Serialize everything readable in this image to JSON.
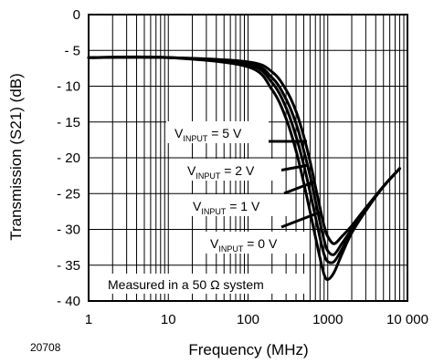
{
  "chart_data": {
    "type": "line",
    "title": "",
    "xlabel": "Frequency (MHz)",
    "ylabel": "Transmission (S21) (dB)",
    "xscale": "log",
    "xlim": [
      1,
      10000
    ],
    "ylim": [
      -40,
      0
    ],
    "x_tick_labels": [
      "1",
      "10",
      "100",
      "1000",
      "10 000"
    ],
    "x_ticks": [
      1,
      10,
      100,
      1000,
      10000
    ],
    "y_ticks": [
      0,
      -5,
      -10,
      -15,
      -20,
      -25,
      -30,
      -35,
      -40
    ],
    "y_tick_labels": [
      "0",
      "- 5",
      "- 10",
      "- 15",
      "- 20",
      "- 25",
      "- 30",
      "- 35",
      "- 40"
    ],
    "grid": true,
    "series": [
      {
        "label": {
          "main": "V",
          "sub": "INPUT",
          "rest": " = 5 V"
        },
        "x": [
          1,
          10,
          100,
          200,
          300,
          400,
          500,
          600,
          700,
          800,
          900,
          1000,
          1200,
          1500,
          2000,
          3000,
          5000,
          8000
        ],
        "y": [
          -6,
          -6,
          -6.6,
          -8,
          -10.5,
          -13.5,
          -17,
          -20.5,
          -24,
          -27,
          -29.5,
          -31,
          -32,
          -31,
          -29.5,
          -27,
          -24,
          -21.5
        ]
      },
      {
        "label": {
          "main": "V",
          "sub": "INPUT",
          "rest": " = 2 V"
        },
        "x": [
          1,
          10,
          100,
          200,
          300,
          400,
          500,
          600,
          700,
          800,
          900,
          1000,
          1200,
          1500,
          2000,
          3000,
          5000,
          8000
        ],
        "y": [
          -6,
          -6,
          -6.8,
          -8.8,
          -11.8,
          -15.2,
          -19,
          -22.5,
          -26,
          -29,
          -31.5,
          -33,
          -33.5,
          -32,
          -30,
          -27.2,
          -24,
          -21.5
        ]
      },
      {
        "label": {
          "main": "V",
          "sub": "INPUT",
          "rest": " = 1 V"
        },
        "x": [
          1,
          10,
          100,
          200,
          300,
          400,
          500,
          600,
          700,
          800,
          900,
          1000,
          1200,
          1500,
          2000,
          3000,
          5000,
          8000
        ],
        "y": [
          -6,
          -6,
          -7,
          -9.5,
          -13,
          -17,
          -21,
          -24.8,
          -28.2,
          -31.2,
          -33.5,
          -34.5,
          -34.5,
          -32.8,
          -30.3,
          -27.3,
          -24,
          -21.5
        ]
      },
      {
        "label": {
          "main": "V",
          "sub": "INPUT",
          "rest": " = 0 V"
        },
        "x": [
          1,
          10,
          100,
          200,
          300,
          400,
          500,
          600,
          700,
          800,
          900,
          1000,
          1200,
          1500,
          2000,
          3000,
          5000,
          8000
        ],
        "y": [
          -6,
          -6,
          -7.3,
          -10.5,
          -14.5,
          -19,
          -23.5,
          -27.5,
          -31,
          -34,
          -36.3,
          -37,
          -36,
          -33.5,
          -30.5,
          -27.4,
          -24,
          -21.5
        ]
      }
    ],
    "annotation": {
      "text_before": "Measured in a 50 ",
      "symbol": "Ω",
      "text_after": " system"
    }
  },
  "figure_id": "20708"
}
